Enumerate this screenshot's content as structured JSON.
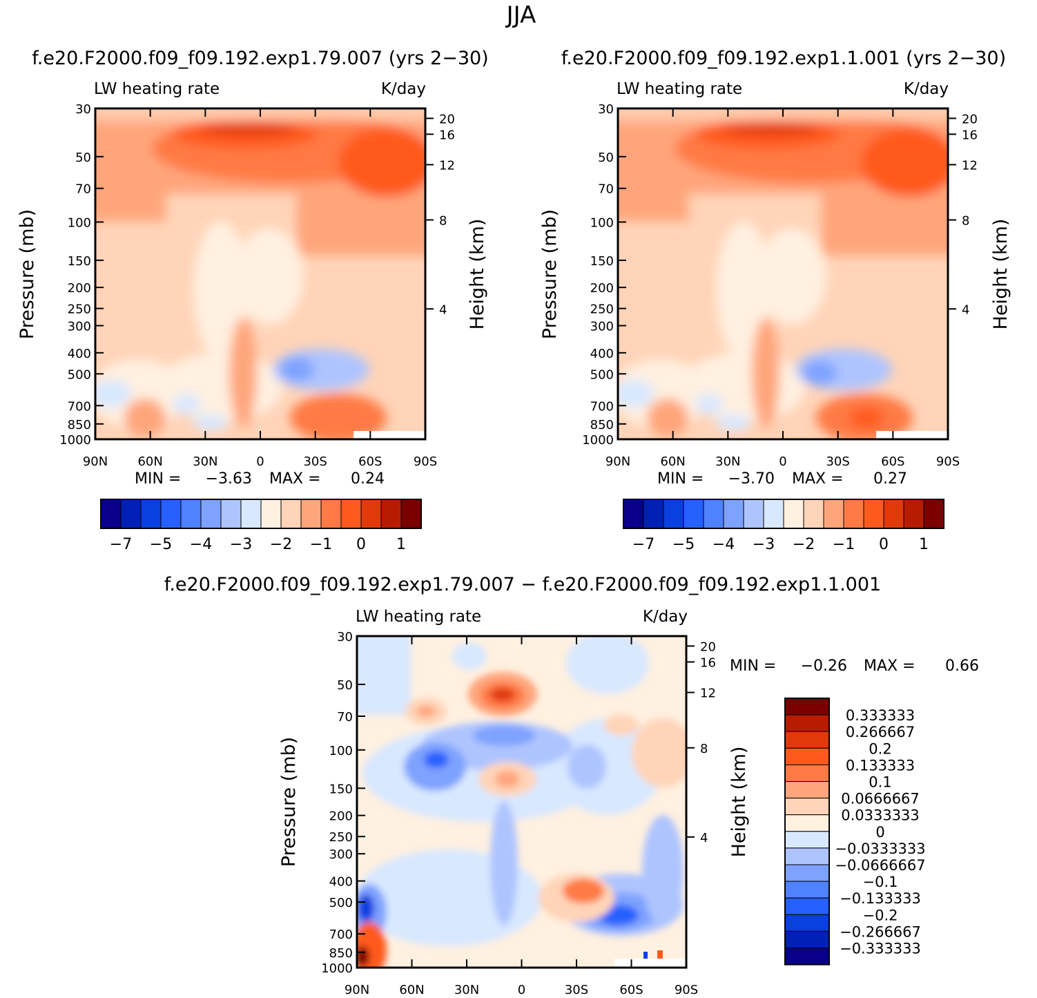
{
  "figure": {
    "title": "JJA"
  },
  "colors": {
    "abs_palette": [
      "#08008a",
      "#0021b4",
      "#0a3fe0",
      "#2660ff",
      "#4f82ff",
      "#7ea2ff",
      "#aec4ff",
      "#d8e8ff",
      "#fff0e0",
      "#ffd4b8",
      "#ffa57c",
      "#ff7a44",
      "#ff5a1e",
      "#e03a0a",
      "#b81c00",
      "#7a0000"
    ],
    "diff_palette": [
      "#08008a",
      "#0021b4",
      "#0a3fe0",
      "#2660ff",
      "#4f82ff",
      "#7ea2ff",
      "#aec4ff",
      "#d8e8ff",
      "#fff0e0",
      "#ffd4b8",
      "#ffa57c",
      "#ff7a44",
      "#ff5a1e",
      "#e03a0a",
      "#b81c00",
      "#7a0000"
    ]
  },
  "chart_data": [
    {
      "type": "heatmap",
      "id": "top-left",
      "title": "f.e20.F2000.f09_f09.192.exp1.79.007 (yrs 2−30)",
      "left_label": "LW heating rate",
      "right_label": "K/day",
      "xlabel": "",
      "ylabel": "Pressure (mb)",
      "y2label": "Height (km)",
      "x_ticks": [
        "90N",
        "60N",
        "30N",
        "0",
        "30S",
        "60S",
        "90S"
      ],
      "y_ticks": [
        "30",
        "50",
        "70",
        "100",
        "150",
        "200",
        "250",
        "300",
        "400",
        "500",
        "700",
        "850",
        "1000"
      ],
      "y_tick_values": [
        30,
        50,
        70,
        100,
        150,
        200,
        250,
        300,
        400,
        500,
        700,
        850,
        1000
      ],
      "y2_ticks": [
        "20",
        "16",
        "12",
        "8",
        "4"
      ],
      "ylim": [
        30,
        1000
      ],
      "xlim": [
        90,
        -90
      ],
      "min_label": "MIN =",
      "min_value": "−3.63",
      "max_label": "MAX =",
      "max_value": "0.24",
      "colorbar_labels": [
        "−7",
        "−5",
        "−4",
        "−3",
        "−2",
        "−1",
        "0",
        "1"
      ]
    },
    {
      "type": "heatmap",
      "id": "top-right",
      "title": "f.e20.F2000.f09_f09.192.exp1.1.001 (yrs 2−30)",
      "left_label": "LW heating rate",
      "right_label": "K/day",
      "xlabel": "",
      "ylabel": "Pressure (mb)",
      "y2label": "Height (km)",
      "x_ticks": [
        "90N",
        "60N",
        "30N",
        "0",
        "30S",
        "60S",
        "90S"
      ],
      "y_ticks": [
        "30",
        "50",
        "70",
        "100",
        "150",
        "200",
        "250",
        "300",
        "400",
        "500",
        "700",
        "850",
        "1000"
      ],
      "y_tick_values": [
        30,
        50,
        70,
        100,
        150,
        200,
        250,
        300,
        400,
        500,
        700,
        850,
        1000
      ],
      "y2_ticks": [
        "20",
        "16",
        "12",
        "8",
        "4"
      ],
      "ylim": [
        30,
        1000
      ],
      "xlim": [
        90,
        -90
      ],
      "min_label": "MIN =",
      "min_value": "−3.70",
      "max_label": "MAX =",
      "max_value": "0.27",
      "colorbar_labels": [
        "−7",
        "−5",
        "−4",
        "−3",
        "−2",
        "−1",
        "0",
        "1"
      ]
    },
    {
      "type": "heatmap",
      "id": "bottom-diff",
      "title": "f.e20.F2000.f09_f09.192.exp1.79.007 − f.e20.F2000.f09_f09.192.exp1.1.001",
      "left_label": "LW heating rate",
      "right_label": "K/day",
      "xlabel": "",
      "ylabel": "Pressure (mb)",
      "y2label": "Height (km)",
      "x_ticks": [
        "90N",
        "60N",
        "30N",
        "0",
        "30S",
        "60S",
        "90S"
      ],
      "y_ticks": [
        "30",
        "50",
        "70",
        "100",
        "150",
        "200",
        "250",
        "300",
        "400",
        "500",
        "700",
        "850",
        "1000"
      ],
      "y_tick_values": [
        30,
        50,
        70,
        100,
        150,
        200,
        250,
        300,
        400,
        500,
        700,
        850,
        1000
      ],
      "y2_ticks": [
        "20",
        "16",
        "12",
        "8",
        "4"
      ],
      "ylim": [
        30,
        1000
      ],
      "xlim": [
        90,
        -90
      ],
      "min_label": "MIN =",
      "min_value": "−0.26",
      "max_label": "MAX =",
      "max_value": "0.66",
      "colorbar_labels": [
        "0.333333",
        "0.266667",
        "0.2",
        "0.133333",
        "0.1",
        "0.0666667",
        "0.0333333",
        "0",
        "−0.0333333",
        "−0.0666667",
        "−0.1",
        "−0.133333",
        "−0.2",
        "−0.266667",
        "−0.333333"
      ]
    }
  ]
}
